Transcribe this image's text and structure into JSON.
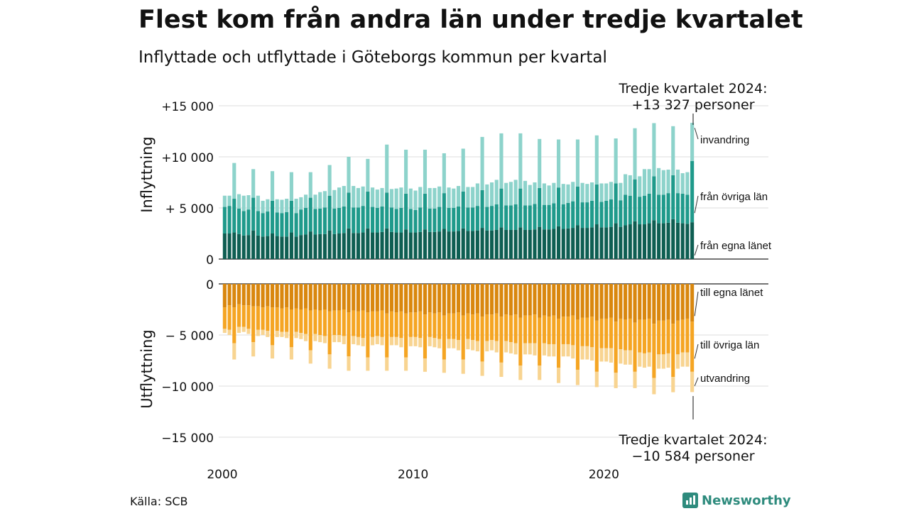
{
  "title": "Flest kom från andra län under tredje kvartalet",
  "subtitle": "Inflyttade och utflyttade i Göteborgs kommun per kvartal",
  "source": "Källa: SCB",
  "brand": {
    "name": "Newsworthy",
    "icon": "bar-chart-icon",
    "color": "#2e8b7d"
  },
  "colors": {
    "in_own": "#0e5e52",
    "in_other": "#1f9a8b",
    "in_immig": "#8dd3cb",
    "out_own": "#d9870e",
    "out_other": "#f5a523",
    "out_emig": "#f8d491",
    "grid": "#dddddd"
  },
  "chart_data": {
    "type": "bar",
    "stacked": true,
    "quarters_start": "2000 Q1",
    "quarters_end": "2024 Q3",
    "x_ticks": [
      "2000",
      "2010",
      "2020"
    ],
    "panels": [
      {
        "ylabel": "Inflyttning",
        "ylim": [
          0,
          15000
        ],
        "y_ticks": [
          {
            "value": 0,
            "label": "0"
          },
          {
            "value": 5000,
            "label": "+ 5 000"
          },
          {
            "value": 10000,
            "label": "+10 000"
          },
          {
            "value": 15000,
            "label": "+15 000"
          }
        ],
        "series_labels": [
          "från egna länet",
          "från övriga län",
          "invandring"
        ],
        "annotation": {
          "line1": "Tredje kvartalet 2024:",
          "line2": "+13 327 personer"
        }
      },
      {
        "ylabel": "Utflyttning",
        "ylim": [
          -15000,
          0
        ],
        "y_ticks": [
          {
            "value": 0,
            "label": "0"
          },
          {
            "value": -5000,
            "label": "− 5 000"
          },
          {
            "value": -10000,
            "label": "−10 000"
          },
          {
            "value": -15000,
            "label": "−15 000"
          }
        ],
        "series_labels": [
          "till egna länet",
          "till övriga län",
          "utvandring"
        ],
        "annotation": {
          "line1": "Tredje kvartalet 2024:",
          "line2": "−10 584 personer"
        }
      }
    ],
    "series": [
      {
        "name": "från egna länet",
        "values": [
          2500,
          2500,
          2600,
          2450,
          2300,
          2350,
          2800,
          2300,
          2200,
          2250,
          2500,
          2250,
          2200,
          2200,
          2600,
          2200,
          2350,
          2400,
          2700,
          2400,
          2450,
          2450,
          2800,
          2450,
          2500,
          2550,
          3000,
          2550,
          2550,
          2600,
          3000,
          2600,
          2600,
          2650,
          3000,
          2650,
          2600,
          2600,
          2900,
          2600,
          2600,
          2650,
          2900,
          2650,
          2650,
          2700,
          2950,
          2700,
          2700,
          2750,
          3000,
          2750,
          2750,
          2800,
          3050,
          2800,
          2800,
          2850,
          3100,
          2850,
          2850,
          2850,
          3100,
          2850,
          2850,
          2900,
          3150,
          2900,
          2900,
          2950,
          3200,
          2950,
          3000,
          3050,
          3300,
          3050,
          3050,
          3100,
          3400,
          3100,
          3100,
          3150,
          3500,
          3150,
          3300,
          3400,
          3700,
          3400,
          3400,
          3500,
          3800,
          3500,
          3500,
          3550,
          3900,
          3550,
          3500,
          3450,
          3600
        ]
      },
      {
        "name": "från övriga län",
        "values": [
          2600,
          2700,
          3300,
          2500,
          2400,
          2500,
          3200,
          2400,
          2300,
          2400,
          3200,
          2300,
          2300,
          2400,
          3100,
          2300,
          2500,
          2600,
          3300,
          2500,
          2500,
          2600,
          3400,
          2500,
          2500,
          2600,
          3500,
          2500,
          2500,
          2600,
          3600,
          2500,
          2400,
          2500,
          3500,
          2400,
          2300,
          2400,
          3500,
          2300,
          2200,
          2400,
          3500,
          2300,
          2300,
          2400,
          3500,
          2300,
          2300,
          2400,
          3600,
          2300,
          2300,
          2400,
          3700,
          2300,
          2400,
          2500,
          3800,
          2400,
          2400,
          2500,
          3800,
          2400,
          2400,
          2500,
          3800,
          2400,
          2400,
          2500,
          3800,
          2400,
          2500,
          2600,
          3800,
          2500,
          2500,
          2600,
          3900,
          2500,
          2600,
          2700,
          3900,
          2600,
          3000,
          2800,
          4100,
          2700,
          2800,
          2900,
          4300,
          2800,
          2800,
          2900,
          4300,
          2900,
          2900,
          2850,
          6000
        ]
      },
      {
        "name": "invandring",
        "values": [
          1100,
          1000,
          3500,
          1400,
          1500,
          1400,
          2800,
          1500,
          1200,
          1200,
          2900,
          1300,
          1300,
          1300,
          2800,
          1400,
          1200,
          1300,
          2500,
          1400,
          1600,
          1600,
          3000,
          1800,
          2000,
          2000,
          3500,
          2100,
          1900,
          1900,
          3200,
          1900,
          1800,
          1800,
          4700,
          1800,
          2000,
          2000,
          4300,
          2000,
          1900,
          2000,
          4300,
          2000,
          2000,
          2000,
          3900,
          2000,
          1900,
          2000,
          4200,
          2000,
          2000,
          2200,
          5200,
          2200,
          2300,
          2400,
          5400,
          2200,
          2300,
          2400,
          5400,
          2400,
          2000,
          2100,
          4800,
          2100,
          1900,
          2000,
          4700,
          2000,
          1800,
          1900,
          4600,
          1900,
          1800,
          1800,
          4800,
          1800,
          1700,
          1700,
          4400,
          1700,
          2000,
          2000,
          5000,
          2000,
          2600,
          2400,
          5200,
          2600,
          2400,
          2300,
          4800,
          2300,
          2000,
          2200,
          3727
        ]
      },
      {
        "name": "till egna länet",
        "values": [
          -2300,
          -2100,
          -2300,
          -2000,
          -2100,
          -2100,
          -2200,
          -2200,
          -2300,
          -2200,
          -2300,
          -2300,
          -2400,
          -2300,
          -2500,
          -2400,
          -2500,
          -2400,
          -2600,
          -2500,
          -2600,
          -2500,
          -2700,
          -2600,
          -2600,
          -2500,
          -2800,
          -2600,
          -2700,
          -2600,
          -2800,
          -2700,
          -2700,
          -2600,
          -2900,
          -2700,
          -2800,
          -2700,
          -2900,
          -2800,
          -2800,
          -2700,
          -3000,
          -2800,
          -2900,
          -2800,
          -3100,
          -2900,
          -2900,
          -2800,
          -3100,
          -2900,
          -3000,
          -2900,
          -3200,
          -3000,
          -3000,
          -2900,
          -3200,
          -3000,
          -3100,
          -3000,
          -3300,
          -3100,
          -3100,
          -3000,
          -3300,
          -3100,
          -3200,
          -3100,
          -3400,
          -3200,
          -3200,
          -3100,
          -3500,
          -3300,
          -3300,
          -3200,
          -3600,
          -3400,
          -3400,
          -3300,
          -3700,
          -3400,
          -3500,
          -3400,
          -3800,
          -3500,
          -3500,
          -3400,
          -3900,
          -3600,
          -3600,
          -3500,
          -3900,
          -3600,
          -3500,
          -3400,
          -3700
        ]
      },
      {
        "name": "till övriga län",
        "values": [
          -2100,
          -2400,
          -3500,
          -2200,
          -2100,
          -2300,
          -3500,
          -2300,
          -2200,
          -2400,
          -3700,
          -2300,
          -2300,
          -2400,
          -3700,
          -2300,
          -2300,
          -2500,
          -3900,
          -2400,
          -2400,
          -2600,
          -4200,
          -2400,
          -2400,
          -2600,
          -4300,
          -2500,
          -2500,
          -2700,
          -4400,
          -2500,
          -2400,
          -2600,
          -4300,
          -2500,
          -2400,
          -2600,
          -4300,
          -2400,
          -2400,
          -2600,
          -4300,
          -2400,
          -2400,
          -2600,
          -4300,
          -2500,
          -2500,
          -2700,
          -4300,
          -2500,
          -2500,
          -2700,
          -4400,
          -2600,
          -2500,
          -2700,
          -4500,
          -2600,
          -2600,
          -2800,
          -4700,
          -2700,
          -2700,
          -2800,
          -4700,
          -2700,
          -2700,
          -2800,
          -4800,
          -2700,
          -2700,
          -2900,
          -4900,
          -2800,
          -2800,
          -3000,
          -5000,
          -2900,
          -2900,
          -3000,
          -5000,
          -3000,
          -3000,
          -3100,
          -4800,
          -3200,
          -3300,
          -3300,
          -5300,
          -3300,
          -3300,
          -3300,
          -5200,
          -3300,
          -3200,
          -3300,
          -4900
        ]
      },
      {
        "name": "utvandring",
        "values": [
          -400,
          -500,
          -1600,
          -600,
          -500,
          -500,
          -1400,
          -600,
          -500,
          -600,
          -1300,
          -600,
          -500,
          -600,
          -1200,
          -600,
          -600,
          -700,
          -1300,
          -700,
          -700,
          -700,
          -1400,
          -700,
          -700,
          -800,
          -1400,
          -800,
          -800,
          -800,
          -1300,
          -800,
          -800,
          -800,
          -1300,
          -800,
          -800,
          -900,
          -1300,
          -900,
          -900,
          -900,
          -1300,
          -900,
          -900,
          -900,
          -1300,
          -900,
          -900,
          -1000,
          -1400,
          -1000,
          -1000,
          -1000,
          -1400,
          -1000,
          -1000,
          -1100,
          -1400,
          -1100,
          -1100,
          -1100,
          -1400,
          -1100,
          -1100,
          -1200,
          -1400,
          -1200,
          -1200,
          -1200,
          -1500,
          -1200,
          -1200,
          -1300,
          -1500,
          -1300,
          -1300,
          -1300,
          -1500,
          -1300,
          -1300,
          -1400,
          -1500,
          -1400,
          -1400,
          -1400,
          -1600,
          -1400,
          -1400,
          -1400,
          -1600,
          -1400,
          -1400,
          -1400,
          -1500,
          -1400,
          -1400,
          -1400,
          -1984
        ]
      }
    ]
  }
}
